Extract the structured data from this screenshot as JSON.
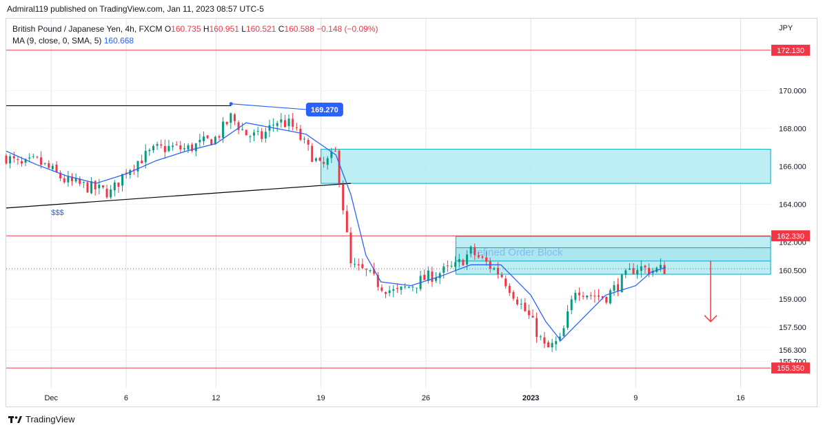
{
  "publisher": "Admiral119 published on TradingView.com, Jan 11, 2023 08:57 UTC-5",
  "legend": {
    "symbol": "British Pound / Japanese Yen, 4h, FXCM",
    "o_label": "O",
    "o": "160.735",
    "h_label": "H",
    "h": "160.951",
    "l_label": "L",
    "l": "160.521",
    "c_label": "C",
    "c": "160.588",
    "change": "−0.148 (−0.09%)",
    "ma_label": "MA (9, close, 0, SMA, 5)",
    "ma_value": "160.668"
  },
  "footer": {
    "brand": "TradingView",
    "logo_icon": "tradingview-logo-icon"
  },
  "colors": {
    "up": "#089981",
    "down": "#f23645",
    "ma": "#2962ff",
    "zone": "#b2ebf2",
    "zone_border": "#00acc1",
    "level": "#f23645"
  },
  "chart_data": {
    "type": "candlestick",
    "currency": "JPY",
    "y_ticks": [
      "172.130",
      "170.000",
      "168.000",
      "166.000",
      "164.000",
      "162.000",
      "160.500",
      "159.000",
      "157.500",
      "156.300",
      "155.700"
    ],
    "y_tick_values": [
      172.13,
      170.0,
      168.0,
      166.0,
      164.0,
      162.0,
      160.5,
      159.0,
      157.5,
      156.3,
      155.7
    ],
    "ylim": [
      154.3,
      173.8
    ],
    "x_ticks": [
      "Dec",
      "6",
      "12",
      "19",
      "26",
      "2023",
      "9",
      "16"
    ],
    "x_tick_dates": [
      "2022-12-01",
      "2022-12-06",
      "2022-12-12",
      "2022-12-19",
      "2022-12-26",
      "2023-01-02",
      "2023-01-09",
      "2023-01-16"
    ],
    "xlim": [
      "2022-11-28",
      "2023-01-18"
    ],
    "price_levels": [
      {
        "label": "172.130",
        "value": 172.13
      },
      {
        "label": "162.330",
        "value": 162.33
      },
      {
        "label": "155.350",
        "value": 155.35
      }
    ],
    "current_price": 160.588,
    "zones": [
      {
        "from": "2022-12-19",
        "to": "2023-01-18",
        "low": 165.1,
        "high": 166.9,
        "label": ""
      },
      {
        "from": "2022-12-28",
        "to": "2023-01-18",
        "low": 160.3,
        "high": 162.3,
        "label": "Refined Order Block"
      }
    ],
    "inner_band": {
      "from": "2022-12-28",
      "to": "2023-01-18",
      "low": 161.0,
      "high": 161.7
    },
    "annotations": [
      {
        "type": "label",
        "text": "169.270",
        "date": "2022-12-18",
        "price": 169.0
      },
      {
        "type": "text",
        "text": "$$$",
        "date": "2022-12-01",
        "price": 163.8
      },
      {
        "type": "arrow-down",
        "date": "2023-01-14",
        "from": 161.0,
        "to": 157.8
      }
    ],
    "trendlines": [
      {
        "x1": "2022-11-28",
        "y1": 169.2,
        "x2": "2022-12-13",
        "y2": 169.2,
        "color": "#000000"
      },
      {
        "x1": "2022-12-13",
        "y1": 169.3,
        "x2": "2022-12-18",
        "y2": 169.0,
        "color": "#2962ff"
      },
      {
        "x1": "2022-11-28",
        "y1": 163.8,
        "x2": "2022-12-21",
        "y2": 165.1,
        "color": "#000000"
      }
    ],
    "close_path": [
      [
        "2022-11-28",
        166.5
      ],
      [
        "2022-11-29",
        166.0
      ],
      [
        "2022-11-30",
        166.3
      ],
      [
        "2022-12-01",
        165.8
      ],
      [
        "2022-12-02",
        165.2
      ],
      [
        "2022-12-03",
        165.0
      ],
      [
        "2022-12-05",
        164.6
      ],
      [
        "2022-12-06",
        165.8
      ],
      [
        "2022-12-07",
        166.4
      ],
      [
        "2022-12-08",
        166.9
      ],
      [
        "2022-12-09",
        167.0
      ],
      [
        "2022-12-10",
        166.9
      ],
      [
        "2022-12-12",
        167.5
      ],
      [
        "2022-12-13",
        168.6
      ],
      [
        "2022-12-14",
        167.7
      ],
      [
        "2022-12-15",
        167.5
      ],
      [
        "2022-12-16",
        168.4
      ],
      [
        "2022-12-17",
        168.2
      ],
      [
        "2022-12-19",
        165.9
      ],
      [
        "2022-12-20",
        166.7
      ],
      [
        "2022-12-21",
        160.7
      ],
      [
        "2022-12-22",
        160.4
      ],
      [
        "2022-12-23",
        159.7
      ],
      [
        "2022-12-24",
        159.3
      ],
      [
        "2022-12-26",
        160.1
      ],
      [
        "2022-12-27",
        160.4
      ],
      [
        "2022-12-28",
        160.7
      ],
      [
        "2022-12-29",
        161.5
      ],
      [
        "2022-12-30",
        160.9
      ],
      [
        "2022-12-31",
        160.3
      ],
      [
        "2023-01-02",
        157.9
      ],
      [
        "2023-01-03",
        156.3
      ],
      [
        "2023-01-04",
        156.8
      ],
      [
        "2023-01-05",
        159.6
      ],
      [
        "2023-01-06",
        159.2
      ],
      [
        "2023-01-07",
        159.1
      ],
      [
        "2023-01-09",
        160.7
      ],
      [
        "2023-01-10",
        160.5
      ],
      [
        "2023-01-11",
        160.59
      ]
    ],
    "ma_path": [
      [
        "2022-11-28",
        166.8
      ],
      [
        "2022-11-30",
        166.1
      ],
      [
        "2022-12-02",
        165.5
      ],
      [
        "2022-12-04",
        165.1
      ],
      [
        "2022-12-06",
        165.6
      ],
      [
        "2022-12-08",
        166.3
      ],
      [
        "2022-12-10",
        166.8
      ],
      [
        "2022-12-12",
        167.2
      ],
      [
        "2022-12-14",
        168.3
      ],
      [
        "2022-12-16",
        168.0
      ],
      [
        "2022-12-18",
        167.7
      ],
      [
        "2022-12-20",
        166.6
      ],
      [
        "2022-12-21",
        164.5
      ],
      [
        "2022-12-22",
        161.3
      ],
      [
        "2022-12-23",
        159.9
      ],
      [
        "2022-12-25",
        159.7
      ],
      [
        "2022-12-27",
        160.2
      ],
      [
        "2022-12-29",
        160.8
      ],
      [
        "2022-12-31",
        160.8
      ],
      [
        "2023-01-02",
        159.2
      ],
      [
        "2023-01-03",
        157.8
      ],
      [
        "2023-01-04",
        156.8
      ],
      [
        "2023-01-05",
        157.6
      ],
      [
        "2023-01-07",
        159.2
      ],
      [
        "2023-01-09",
        159.7
      ],
      [
        "2023-01-10",
        160.4
      ],
      [
        "2023-01-11",
        160.668
      ]
    ]
  }
}
